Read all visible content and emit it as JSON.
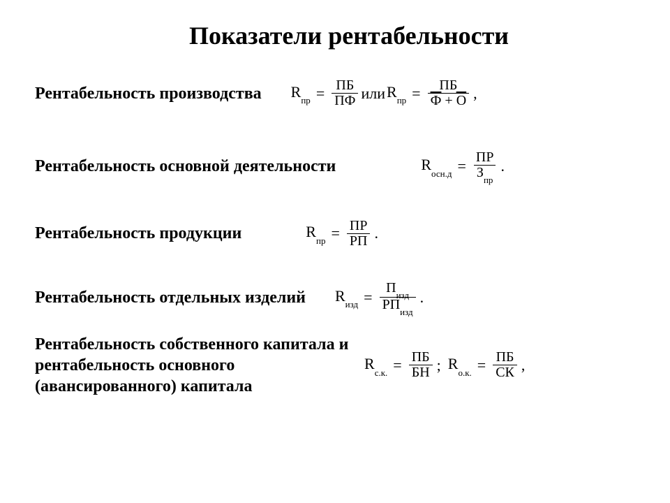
{
  "title": "Показатели рентабельности",
  "rows": [
    {
      "label": "Рентабельность производства",
      "formula": {
        "parts": [
          {
            "var": "R",
            "sub": "пр"
          },
          {
            "eq": "="
          },
          {
            "frac": {
              "num": "ПБ",
              "den": "ПФ"
            }
          },
          {
            "text": " или "
          },
          {
            "var": "R",
            "sub": "пр"
          },
          {
            "eq": "="
          },
          {
            "frac": {
              "num": "ПБ",
              "den_parts": [
                {
                  "bar": "Ф"
                },
                {
                  "text": " + "
                },
                {
                  "bar": "О"
                }
              ]
            }
          },
          {
            "punc": ","
          }
        ]
      }
    },
    {
      "label": "Рентабельность основной деятельности",
      "formula": {
        "left_pad": 120,
        "parts": [
          {
            "var": "R",
            "sub": "осн.д"
          },
          {
            "eq": "="
          },
          {
            "frac": {
              "num": "ПР",
              "den_parts": [
                {
                  "text": "З"
                },
                {
                  "sub": "пр"
                }
              ]
            }
          },
          {
            "punc": "."
          }
        ]
      }
    },
    {
      "label": "Рентабельность продукции",
      "formula": {
        "left_pad": 90,
        "parts": [
          {
            "var": "R",
            "sub": "пр"
          },
          {
            "eq": "="
          },
          {
            "frac": {
              "num": "ПР",
              "den": "РП"
            }
          },
          {
            "punc": "."
          }
        ]
      }
    },
    {
      "label": "Рентабельность отдельных изделий",
      "formula": {
        "left_pad": 40,
        "parts": [
          {
            "var": "R",
            "sub": "изд"
          },
          {
            "eq": "="
          },
          {
            "frac": {
              "num_parts": [
                {
                  "text": "П"
                },
                {
                  "sub": "изд"
                }
              ],
              "den_parts": [
                {
                  "text": "РП"
                },
                {
                  "sub": "изд"
                }
              ]
            }
          },
          {
            "punc": "."
          }
        ]
      }
    },
    {
      "label": "Рентабельность собственного капитала и рентабельность основного (авансированного) капитала",
      "formula": {
        "left_pad": 10,
        "parts": [
          {
            "var": "R",
            "sub": "с.к."
          },
          {
            "eq": "="
          },
          {
            "frac": {
              "num": "ПБ",
              "den": "БН"
            }
          },
          {
            "punc": ";"
          },
          {
            "space": 8
          },
          {
            "var": "R",
            "sub": "о.к."
          },
          {
            "eq": "="
          },
          {
            "frac": {
              "num": "ПБ",
              "den": "СК"
            }
          },
          {
            "punc": ","
          }
        ]
      }
    }
  ],
  "style": {
    "background": "#ffffff",
    "text_color": "#000000",
    "title_fontsize": 36,
    "label_fontsize": 24,
    "formula_fontsize": 22,
    "sub_fontsize": 13,
    "font_family": "Times New Roman"
  }
}
